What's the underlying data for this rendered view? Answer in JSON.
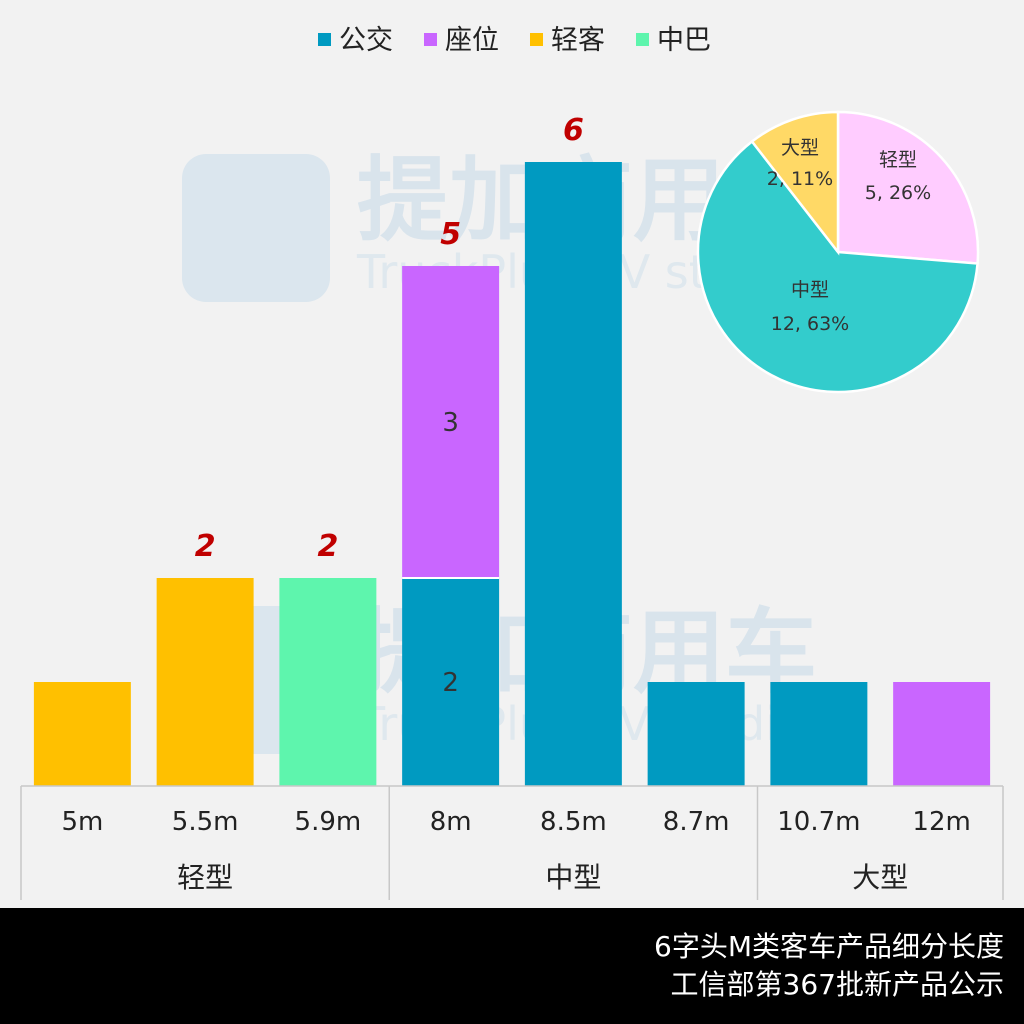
{
  "chart_data": [
    {
      "type": "bar",
      "stacked": true,
      "categories": [
        "5m",
        "5.5m",
        "5.9m",
        "8m",
        "8.5m",
        "8.7m",
        "10.7m",
        "12m"
      ],
      "groups": [
        {
          "label": "轻型",
          "categories": [
            "5m",
            "5.5m",
            "5.9m"
          ]
        },
        {
          "label": "中型",
          "categories": [
            "8m",
            "8.5m",
            "8.7m"
          ]
        },
        {
          "label": "大型",
          "categories": [
            "10.7m",
            "12m"
          ]
        }
      ],
      "series": [
        {
          "name": "公交",
          "color": "#009ac1",
          "values": [
            0,
            0,
            0,
            2,
            6,
            1,
            1,
            0
          ]
        },
        {
          "name": "座位",
          "color": "#c966ff",
          "values": [
            0,
            0,
            0,
            3,
            0,
            0,
            0,
            1
          ]
        },
        {
          "name": "轻客",
          "color": "#ffc000",
          "values": [
            1,
            2,
            0,
            0,
            0,
            0,
            0,
            0
          ]
        },
        {
          "name": "中巴",
          "color": "#5ef5ad",
          "values": [
            0,
            0,
            2,
            0,
            0,
            0,
            0,
            0
          ]
        }
      ],
      "segment_labels": [
        {
          "category": "8m",
          "series": "公交",
          "text": "2"
        },
        {
          "category": "8m",
          "series": "座位",
          "text": "3"
        }
      ],
      "total_labels": [
        {
          "category": "5.5m",
          "text": "2"
        },
        {
          "category": "5.9m",
          "text": "2"
        },
        {
          "category": "8m",
          "text": "5"
        },
        {
          "category": "8.5m",
          "text": "6"
        }
      ],
      "ylim": [
        0,
        6.5
      ],
      "legend": "top",
      "grid": false
    },
    {
      "type": "pie",
      "slices": [
        {
          "name": "轻型",
          "value": 5,
          "percent": "26%",
          "label": "5, 26%",
          "color": "#ffccff"
        },
        {
          "name": "中型",
          "value": 12,
          "percent": "63%",
          "label": "12, 63%",
          "color": "#33cccc"
        },
        {
          "name": "大型",
          "value": 2,
          "percent": "11%",
          "label": "2, 11%",
          "color": "#ffd966"
        }
      ]
    }
  ],
  "watermark": {
    "brand": "提加商用车",
    "sub": "TruckPlus CV studio"
  },
  "footer": {
    "line1": "6字头M类客车产品细分长度",
    "line2": "工信部第367批新产品公示"
  }
}
